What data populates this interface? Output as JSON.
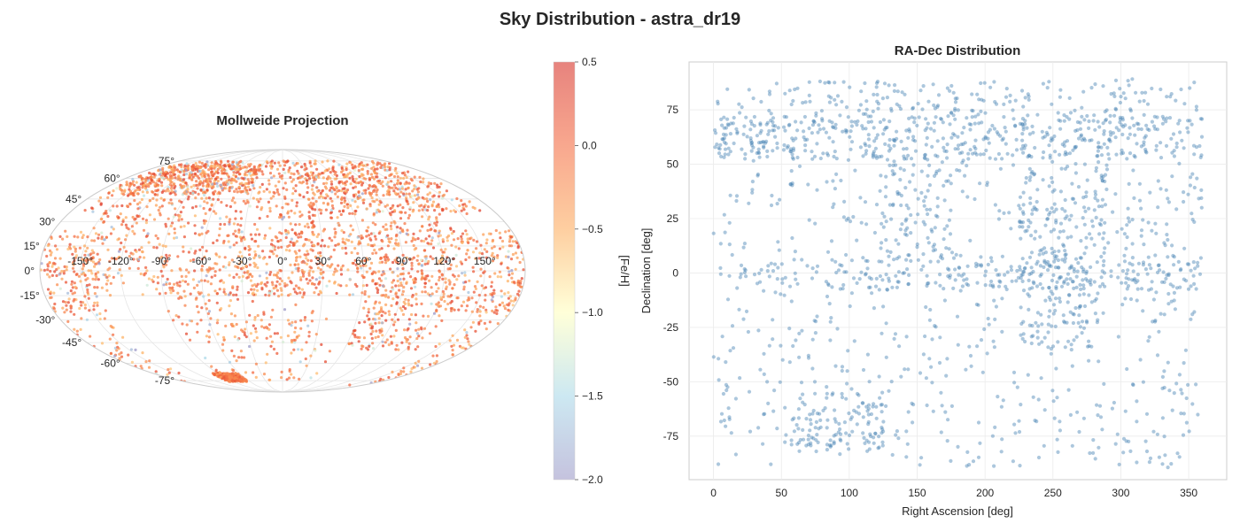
{
  "figure": {
    "title": "Sky Distribution - astra_dr19"
  },
  "chart_data": [
    {
      "type": "scatter",
      "projection": "mollweide",
      "title": "Mollweide Projection",
      "lon_tick_labels": [
        "-150°",
        "-120°",
        "-90°",
        "-60°",
        "-30°",
        "0°",
        "30°",
        "60°",
        "90°",
        "120°",
        "150°"
      ],
      "lat_tick_labels": [
        "-75°",
        "-60°",
        "-45°",
        "-30°",
        "-15°",
        "0°",
        "15°",
        "30°",
        "45°",
        "60°",
        "75°"
      ],
      "grid": true,
      "colorbar": {
        "label": "[Fe/H]",
        "range": [
          -2.0,
          0.5
        ],
        "ticks": [
          "0.5",
          "0.0",
          "−0.5",
          "−1.0",
          "−1.5",
          "−2.0"
        ],
        "colormap": [
          "#9e9ac8",
          "#abd9e9",
          "#ffffbf",
          "#fdae61",
          "#f46d43",
          "#d73027"
        ],
        "alpha": 0.6
      }
    },
    {
      "type": "scatter",
      "title": "RA-Dec Distribution",
      "xlabel": "Right Ascension [deg]",
      "ylabel": "Declination [deg]",
      "xlim": [
        -18,
        378
      ],
      "ylim": [
        -95,
        97
      ],
      "xticks": [
        0,
        50,
        100,
        150,
        200,
        250,
        300,
        350
      ],
      "yticks": [
        -75,
        -50,
        -25,
        0,
        25,
        50,
        75
      ],
      "point_color": "#4682b4",
      "grid": true,
      "footprint_regions": [
        {
          "ra": [
            0,
            360
          ],
          "dec": [
            52,
            72
          ],
          "density": 1.4
        },
        {
          "ra": [
            60,
            360
          ],
          "dec": [
            72,
            88
          ],
          "density": 0.5
        },
        {
          "ra": [
            0,
            80
          ],
          "dec": [
            -5,
            5
          ],
          "density": 0.7
        },
        {
          "ra": [
            80,
            360
          ],
          "dec": [
            -8,
            8
          ],
          "density": 1.0
        },
        {
          "ra": [
            120,
            175
          ],
          "dec": [
            5,
            50
          ],
          "density": 0.8
        },
        {
          "ra": [
            225,
            290
          ],
          "dec": [
            -35,
            50
          ],
          "density": 1.0
        },
        {
          "ra": [
            55,
            125
          ],
          "dec": [
            -82,
            -55
          ],
          "density": 1.3
        },
        {
          "ra": [
            300,
            360
          ],
          "dec": [
            -20,
            40
          ],
          "density": 0.4
        },
        {
          "ra": [
            0,
            360
          ],
          "dec": [
            -90,
            90
          ],
          "density": 0.25
        }
      ]
    }
  ]
}
